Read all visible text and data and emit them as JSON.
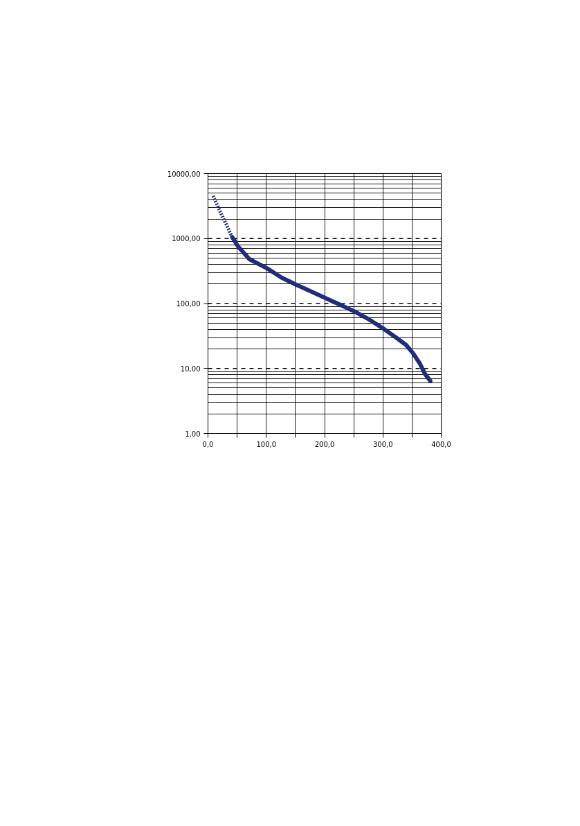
{
  "chart_data": {
    "type": "line",
    "log": "y",
    "grid": true,
    "xlim": [
      0,
      400
    ],
    "xticks": [
      {
        "value": 0,
        "label": "0,0"
      },
      {
        "value": 50,
        "label": null
      },
      {
        "value": 100,
        "label": "100,0"
      },
      {
        "value": 150,
        "label": null
      },
      {
        "value": 200,
        "label": "200,0"
      },
      {
        "value": 250,
        "label": null
      },
      {
        "value": 300,
        "label": "300,0"
      },
      {
        "value": 350,
        "label": null
      },
      {
        "value": 400,
        "label": "400,0"
      }
    ],
    "ylim": [
      1,
      10000
    ],
    "yticks": [
      {
        "value": 1,
        "label": "1,00"
      },
      {
        "value": 10,
        "label": "10,00"
      },
      {
        "value": 100,
        "label": "100,00"
      },
      {
        "value": 1000,
        "label": "1000,00"
      },
      {
        "value": 10000,
        "label": "10000,00"
      }
    ],
    "ref_lines": [
      {
        "axis": "y",
        "value": 10,
        "line_style": "dashed",
        "color": "#000000"
      },
      {
        "axis": "y",
        "value": 100,
        "line_style": "dashed",
        "color": "#000000"
      },
      {
        "axis": "y",
        "value": 1000,
        "line_style": "dashed",
        "color": "#000000"
      }
    ],
    "series": [
      {
        "color": "#1f2d7a",
        "line_style": "dotted",
        "x": [
          8.7,
          20,
          30,
          41.5
        ],
        "values": [
          4530,
          2700,
          1750,
          1055
        ]
      },
      {
        "color": "#1f2d7a",
        "line_style": "solid",
        "x": [
          41.5,
          51.4,
          71,
          101.6,
          126.5,
          151,
          181.8,
          201.6,
          225.3,
          251,
          276.7,
          300.4,
          324,
          340,
          351.8,
          363.6,
          372.3,
          381.4
        ],
        "values": [
          1055,
          759,
          482,
          347,
          250,
          195,
          146,
          121,
          97,
          75.5,
          56.6,
          41.4,
          29.3,
          22.9,
          17.1,
          11.8,
          8.2,
          6.4
        ]
      }
    ]
  }
}
